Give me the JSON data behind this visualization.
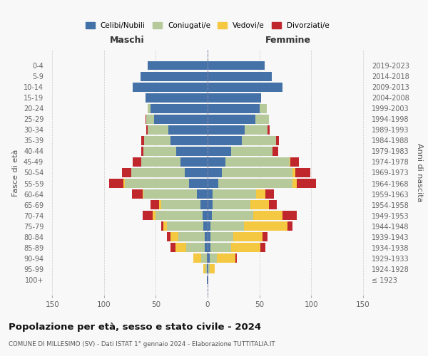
{
  "age_groups": [
    "100+",
    "95-99",
    "90-94",
    "85-89",
    "80-84",
    "75-79",
    "70-74",
    "65-69",
    "60-64",
    "55-59",
    "50-54",
    "45-49",
    "40-44",
    "35-39",
    "30-34",
    "25-29",
    "20-24",
    "15-19",
    "10-14",
    "5-9",
    "0-4"
  ],
  "birth_years": [
    "≤ 1923",
    "1924-1928",
    "1929-1933",
    "1934-1938",
    "1939-1943",
    "1944-1948",
    "1949-1953",
    "1954-1958",
    "1959-1963",
    "1964-1968",
    "1969-1973",
    "1974-1978",
    "1979-1983",
    "1984-1988",
    "1989-1993",
    "1994-1998",
    "1999-2003",
    "2004-2008",
    "2009-2013",
    "2014-2018",
    "2019-2023"
  ],
  "colors": {
    "celibe": "#4472a8",
    "coniugato": "#b5c99a",
    "vedovo": "#f5c842",
    "divorziato": "#c0272d"
  },
  "maschi": {
    "celibe": [
      1,
      1,
      1,
      3,
      3,
      4,
      5,
      7,
      10,
      18,
      22,
      26,
      30,
      36,
      38,
      52,
      55,
      60,
      72,
      65,
      58
    ],
    "coniugato": [
      0,
      1,
      5,
      18,
      25,
      35,
      45,
      38,
      52,
      62,
      52,
      38,
      32,
      25,
      20,
      7,
      3,
      0,
      0,
      0,
      0
    ],
    "vedovo": [
      0,
      2,
      8,
      10,
      8,
      4,
      3,
      2,
      1,
      1,
      0,
      0,
      0,
      0,
      0,
      0,
      0,
      0,
      0,
      0,
      0
    ],
    "divorziato": [
      0,
      0,
      0,
      5,
      3,
      2,
      10,
      8,
      10,
      14,
      9,
      8,
      2,
      3,
      1,
      1,
      0,
      0,
      0,
      0,
      0
    ]
  },
  "femmine": {
    "nubile": [
      1,
      1,
      2,
      3,
      3,
      3,
      4,
      5,
      5,
      10,
      14,
      17,
      23,
      33,
      36,
      46,
      50,
      52,
      72,
      62,
      55
    ],
    "coniugata": [
      0,
      1,
      7,
      20,
      22,
      32,
      40,
      36,
      42,
      72,
      68,
      62,
      40,
      33,
      22,
      13,
      7,
      0,
      0,
      0,
      0
    ],
    "vedova": [
      0,
      5,
      18,
      28,
      28,
      42,
      28,
      18,
      9,
      4,
      3,
      1,
      0,
      0,
      0,
      0,
      0,
      0,
      0,
      0,
      0
    ],
    "divorziata": [
      0,
      0,
      1,
      5,
      5,
      5,
      14,
      8,
      8,
      19,
      14,
      8,
      5,
      3,
      2,
      0,
      0,
      0,
      0,
      0,
      0
    ]
  },
  "xlim": 155,
  "title": "Popolazione per età, sesso e stato civile - 2024",
  "subtitle": "COMUNE DI MILLESIMO (SV) - Dati ISTAT 1° gennaio 2024 - Elaborazione TUTTITALIA.IT",
  "ylabel_left": "Fasce di età",
  "ylabel_right": "Anni di nascita",
  "xlabel_maschi": "Maschi",
  "xlabel_femmine": "Femmine",
  "legend_labels": [
    "Celibi/Nubili",
    "Coniugati/e",
    "Vedovi/e",
    "Divorziati/e"
  ],
  "bg_color": "#f8f8f8",
  "grid_color": "#cccccc"
}
